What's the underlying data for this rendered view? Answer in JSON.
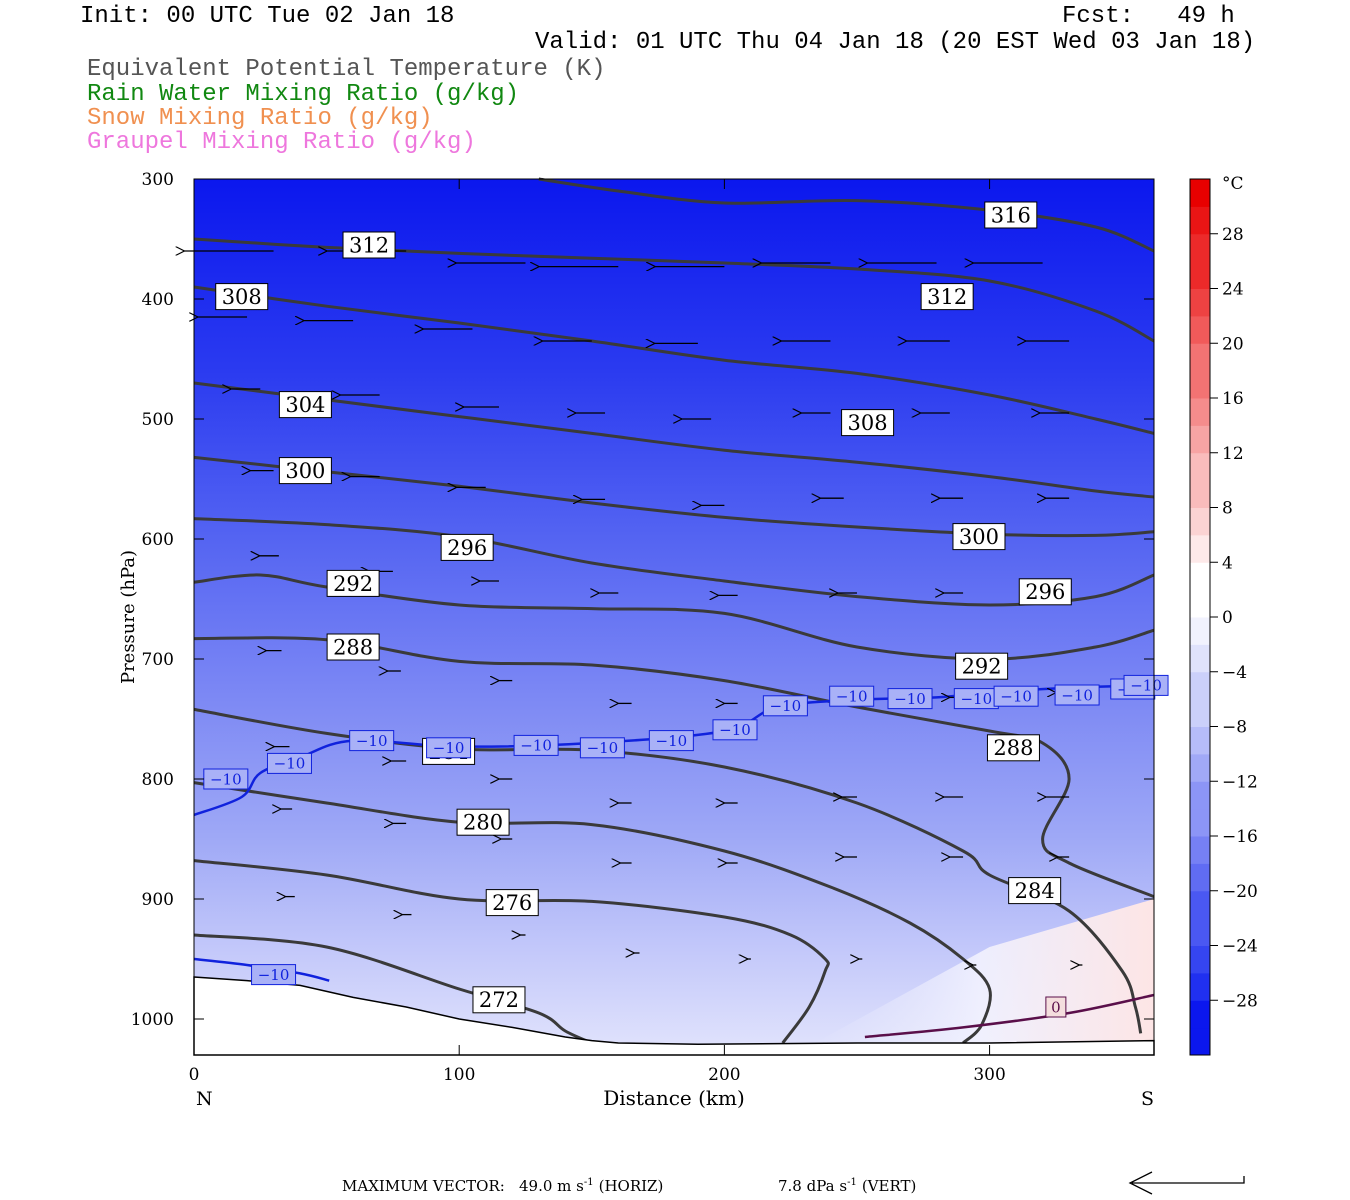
{
  "header": {
    "init": "Init: 00 UTC Tue 02 Jan 18",
    "fcst": "Fcst:   49 h",
    "valid": "Valid: 01 UTC Thu 04 Jan 18 (20 EST Wed 03 Jan 18)"
  },
  "legend": [
    {
      "label": "Equivalent Potential Temperature (K)",
      "color": "#555555"
    },
    {
      "label": "Rain Water Mixing Ratio (g/kg)",
      "color": "#118811"
    },
    {
      "label": "Snow Mixing Ratio (g/kg)",
      "color": "#f09050"
    },
    {
      "label": "Graupel Mixing Ratio (g/kg)",
      "color": "#ee77dd"
    }
  ],
  "footer": {
    "prefix": "MAXIMUM VECTOR:",
    "horiz": "49.0 m s",
    "horiz_unit": "(HORIZ)",
    "vert": "7.8 dPa s",
    "vert_unit": "(VERT)",
    "exp": "-1"
  },
  "chart_data": {
    "type": "cross-section",
    "xlabel": "Distance (km)",
    "ylabel": "Pressure (hPa)",
    "xlim": [
      0,
      362
    ],
    "ylim": [
      1030,
      300
    ],
    "x_ticks": [
      0,
      100,
      200,
      300
    ],
    "y_ticks": [
      300,
      400,
      500,
      600,
      700,
      800,
      900,
      1000
    ],
    "end_labels": {
      "left": "N",
      "right": "S"
    },
    "colorbar": {
      "unit": "°C",
      "ticks": [
        28,
        24,
        20,
        16,
        12,
        8,
        4,
        0,
        -4,
        -8,
        -12,
        -16,
        -20,
        -24,
        -28
      ],
      "range": [
        -32,
        32
      ]
    },
    "theta_e_contours": [
      {
        "level": 316,
        "x": [
          130,
          160,
          200,
          250,
          300,
          340,
          362
        ],
        "p": [
          300,
          310,
          320,
          318,
          326,
          340,
          360
        ],
        "label_at": [
          308,
          330
        ]
      },
      {
        "level": 312,
        "x": [
          0,
          50,
          100,
          150,
          200,
          250,
          300,
          340,
          362
        ],
        "p": [
          350,
          357,
          362,
          366,
          370,
          375,
          385,
          410,
          435
        ],
        "label_at": [
          [
            66,
            355
          ],
          [
            284,
            398
          ]
        ]
      },
      {
        "level": 308,
        "x": [
          0,
          50,
          100,
          150,
          200,
          250,
          300,
          340,
          362
        ],
        "p": [
          390,
          406,
          420,
          435,
          451,
          462,
          480,
          500,
          512
        ],
        "label_at": [
          [
            18,
            398
          ],
          [
            254,
            503
          ]
        ]
      },
      {
        "level": 304,
        "x": [
          0,
          50,
          100,
          150,
          200,
          250,
          300,
          340,
          362
        ],
        "p": [
          470,
          484,
          498,
          512,
          526,
          536,
          548,
          560,
          565
        ],
        "label_at": [
          [
            42,
            488
          ]
        ]
      },
      {
        "level": 300,
        "x": [
          0,
          50,
          100,
          150,
          200,
          250,
          300,
          340,
          362
        ],
        "p": [
          532,
          544,
          556,
          570,
          582,
          590,
          596,
          597,
          594
        ],
        "label_at": [
          [
            42,
            543
          ],
          [
            296,
            598
          ]
        ]
      },
      {
        "level": 296,
        "x": [
          0,
          50,
          100,
          150,
          200,
          250,
          300,
          340,
          362
        ],
        "p": [
          583,
          588,
          598,
          620,
          635,
          648,
          655,
          648,
          630
        ],
        "label_at": [
          [
            103,
            607
          ],
          [
            321,
            644
          ]
        ]
      },
      {
        "level": 292,
        "x": [
          0,
          25,
          50,
          100,
          150,
          200,
          250,
          300,
          340,
          362
        ],
        "p": [
          636,
          630,
          640,
          655,
          658,
          662,
          690,
          700,
          690,
          676
        ],
        "label_at": [
          [
            60,
            637
          ],
          [
            297,
            706
          ]
        ]
      },
      {
        "level": 288,
        "x": [
          0,
          50,
          100,
          150,
          200,
          250,
          300,
          320,
          330,
          320,
          330,
          362
        ],
        "p": [
          683,
          684,
          702,
          705,
          718,
          740,
          760,
          770,
          800,
          850,
          870,
          898
        ],
        "label_at": [
          [
            60,
            690
          ],
          [
            309,
            774
          ]
        ]
      },
      {
        "level": 284,
        "x": [
          0,
          50,
          100,
          150,
          200,
          250,
          290,
          300,
          330,
          350,
          355,
          357
        ],
        "p": [
          742,
          762,
          775,
          776,
          790,
          820,
          860,
          880,
          910,
          960,
          990,
          1012
        ],
        "label_at": [
          [
            96,
            777
          ],
          [
            317,
            893
          ]
        ]
      },
      {
        "level": 280,
        "x": [
          0,
          50,
          100,
          150,
          200,
          240,
          270,
          290,
          300,
          297,
          290
        ],
        "p": [
          803,
          820,
          836,
          838,
          860,
          890,
          920,
          950,
          975,
          1005,
          1020
        ],
        "label_at": [
          [
            109,
            836
          ]
        ]
      },
      {
        "level": 276,
        "x": [
          0,
          50,
          100,
          150,
          200,
          225,
          238,
          238,
          232,
          222
        ],
        "p": [
          868,
          880,
          900,
          902,
          915,
          930,
          950,
          960,
          990,
          1020
        ],
        "label_at": [
          [
            120,
            903
          ]
        ]
      },
      {
        "level": 272,
        "x": [
          0,
          50,
          100,
          130,
          140,
          150
        ],
        "p": [
          930,
          940,
          975,
          995,
          1010,
          1020
        ],
        "label_at": [
          [
            115,
            984
          ]
        ]
      }
    ],
    "temperature_contours": [
      {
        "level": -10,
        "x": [
          0,
          18,
          25,
          40,
          60,
          100,
          150,
          200,
          220,
          250,
          280,
          300,
          330,
          362
        ],
        "p": [
          830,
          815,
          795,
          782,
          768,
          773,
          770,
          760,
          740,
          734,
          732,
          728,
          724,
          722
        ]
      },
      {
        "level": -10,
        "x": [
          0,
          20,
          40,
          51
        ],
        "p": [
          950,
          955,
          962,
          968
        ]
      },
      {
        "level": 0,
        "x": [
          253,
          290,
          330,
          362
        ],
        "p": [
          1015,
          1007,
          995,
          980
        ]
      }
    ],
    "temperature_labels": [
      {
        "text": "-10",
        "x": [
          12,
          36,
          67,
          96,
          129,
          154,
          180,
          204,
          223,
          248,
          270,
          295,
          310,
          333,
          354,
          359
        ],
        "p": [
          800,
          787,
          768,
          774,
          772,
          774,
          768,
          759,
          739,
          731,
          733,
          733,
          731,
          730,
          725,
          722
        ]
      },
      {
        "text": "-10",
        "x": [
          30
        ],
        "p": [
          963
        ]
      },
      {
        "text": "0",
        "x": [
          325
        ],
        "p": [
          990
        ]
      }
    ],
    "terrain": {
      "x": [
        0,
        20,
        40,
        60,
        80,
        100,
        120,
        140,
        150,
        160,
        190,
        250,
        300,
        362
      ],
      "p": [
        965,
        968,
        972,
        982,
        990,
        1000,
        1007,
        1015,
        1018,
        1020,
        1021,
        1020,
        1020,
        1018
      ]
    },
    "wind_vectors": [
      {
        "x": 30,
        "p": 360,
        "u": -45
      },
      {
        "x": 80,
        "p": 360,
        "u": -40
      },
      {
        "x": 125,
        "p": 370,
        "u": -35
      },
      {
        "x": 160,
        "p": 373,
        "u": -40
      },
      {
        "x": 200,
        "p": 373,
        "u": -35
      },
      {
        "x": 240,
        "p": 370,
        "u": -35
      },
      {
        "x": 280,
        "p": 370,
        "u": -35
      },
      {
        "x": 320,
        "p": 370,
        "u": -35
      },
      {
        "x": 20,
        "p": 415,
        "u": -25
      },
      {
        "x": 60,
        "p": 418,
        "u": -25
      },
      {
        "x": 105,
        "p": 425,
        "u": -25
      },
      {
        "x": 150,
        "p": 435,
        "u": -25
      },
      {
        "x": 190,
        "p": 437,
        "u": -22
      },
      {
        "x": 240,
        "p": 435,
        "u": -25
      },
      {
        "x": 285,
        "p": 435,
        "u": -22
      },
      {
        "x": 330,
        "p": 435,
        "u": -22
      },
      {
        "x": 25,
        "p": 475,
        "u": -15
      },
      {
        "x": 70,
        "p": 480,
        "u": -20
      },
      {
        "x": 115,
        "p": 490,
        "u": -18
      },
      {
        "x": 155,
        "p": 495,
        "u": -15
      },
      {
        "x": 195,
        "p": 500,
        "u": -15
      },
      {
        "x": 240,
        "p": 495,
        "u": -15
      },
      {
        "x": 285,
        "p": 495,
        "u": -15
      },
      {
        "x": 330,
        "p": 495,
        "u": -15
      },
      {
        "x": 30,
        "p": 543,
        "u": -12
      },
      {
        "x": 70,
        "p": 548,
        "u": -15
      },
      {
        "x": 110,
        "p": 557,
        "u": -15
      },
      {
        "x": 155,
        "p": 567,
        "u": -12
      },
      {
        "x": 200,
        "p": 572,
        "u": -12
      },
      {
        "x": 245,
        "p": 566,
        "u": -12
      },
      {
        "x": 290,
        "p": 566,
        "u": -12
      },
      {
        "x": 330,
        "p": 566,
        "u": -12
      },
      {
        "x": 32,
        "p": 614,
        "u": -10
      },
      {
        "x": 75,
        "p": 627,
        "u": -12
      },
      {
        "x": 115,
        "p": 635,
        "u": -10
      },
      {
        "x": 160,
        "p": 645,
        "u": -10
      },
      {
        "x": 205,
        "p": 647,
        "u": -10
      },
      {
        "x": 250,
        "p": 645,
        "u": -10
      },
      {
        "x": 290,
        "p": 645,
        "u": -10
      },
      {
        "x": 330,
        "p": 645,
        "u": -10
      },
      {
        "x": 33,
        "p": 693,
        "u": -8
      },
      {
        "x": 78,
        "p": 710,
        "u": -7
      },
      {
        "x": 120,
        "p": 718,
        "u": -7
      },
      {
        "x": 165,
        "p": 737,
        "u": -7
      },
      {
        "x": 205,
        "p": 737,
        "u": -7
      },
      {
        "x": 250,
        "p": 727,
        "u": -7
      },
      {
        "x": 290,
        "p": 732,
        "u": -7
      },
      {
        "x": 330,
        "p": 728,
        "u": -7
      },
      {
        "x": 36,
        "p": 773,
        "u": -8
      },
      {
        "x": 80,
        "p": 785,
        "u": -8
      },
      {
        "x": 120,
        "p": 800,
        "u": -7
      },
      {
        "x": 165,
        "p": 820,
        "u": -7
      },
      {
        "x": 205,
        "p": 820,
        "u": -7
      },
      {
        "x": 250,
        "p": 815,
        "u": -8
      },
      {
        "x": 290,
        "p": 815,
        "u": -10
      },
      {
        "x": 330,
        "p": 815,
        "u": -12
      },
      {
        "x": 37,
        "p": 825,
        "u": -6
      },
      {
        "x": 80,
        "p": 837,
        "u": -7
      },
      {
        "x": 120,
        "p": 850,
        "u": -6
      },
      {
        "x": 165,
        "p": 870,
        "u": -6
      },
      {
        "x": 205,
        "p": 870,
        "u": -6
      },
      {
        "x": 250,
        "p": 865,
        "u": -7
      },
      {
        "x": 290,
        "p": 865,
        "u": -7
      },
      {
        "x": 330,
        "p": 865,
        "u": -6
      },
      {
        "x": 38,
        "p": 898,
        "u": -5
      },
      {
        "x": 82,
        "p": 913,
        "u": -5
      },
      {
        "x": 125,
        "p": 930,
        "u": -3
      },
      {
        "x": 168,
        "p": 945,
        "u": -3
      },
      {
        "x": 210,
        "p": 950,
        "u": -2
      },
      {
        "x": 252,
        "p": 950,
        "u": -1
      },
      {
        "x": 295,
        "p": 955,
        "u": -1
      },
      {
        "x": 335,
        "p": 955,
        "u": -1
      }
    ]
  }
}
